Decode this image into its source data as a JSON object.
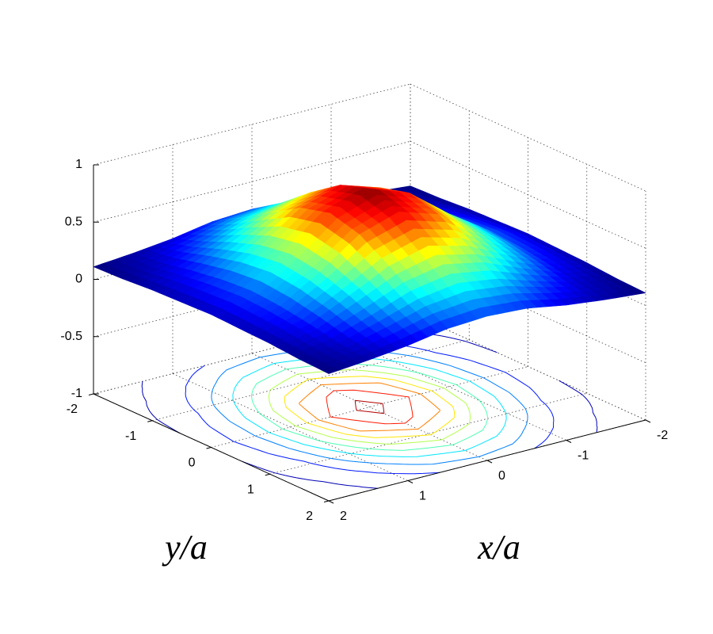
{
  "chart_data": {
    "type": "surface",
    "x": [
      -2,
      -1.5,
      -1,
      -0.5,
      0,
      0.5,
      1,
      1.5,
      2
    ],
    "y": [
      -2,
      -1.5,
      -1,
      -0.5,
      0,
      0.5,
      1,
      1.5,
      2
    ],
    "z": [
      [
        0.11,
        0.14,
        0.18,
        0.24,
        0.26,
        0.24,
        0.18,
        0.14,
        0.11
      ],
      [
        0.12,
        0.17,
        0.27,
        0.38,
        0.43,
        0.38,
        0.27,
        0.17,
        0.12
      ],
      [
        0.14,
        0.22,
        0.38,
        0.55,
        0.64,
        0.55,
        0.38,
        0.22,
        0.14
      ],
      [
        0.15,
        0.26,
        0.47,
        0.71,
        0.82,
        0.71,
        0.47,
        0.26,
        0.15
      ],
      [
        0.16,
        0.28,
        0.51,
        0.78,
        0.9,
        0.78,
        0.51,
        0.28,
        0.16
      ],
      [
        0.15,
        0.26,
        0.47,
        0.71,
        0.82,
        0.71,
        0.47,
        0.26,
        0.15
      ],
      [
        0.14,
        0.22,
        0.38,
        0.55,
        0.64,
        0.55,
        0.38,
        0.22,
        0.14
      ],
      [
        0.12,
        0.17,
        0.27,
        0.38,
        0.43,
        0.38,
        0.27,
        0.17,
        0.12
      ],
      [
        0.11,
        0.14,
        0.18,
        0.24,
        0.26,
        0.24,
        0.18,
        0.14,
        0.11
      ]
    ],
    "xlim": [
      -2,
      2
    ],
    "ylim": [
      -2,
      2
    ],
    "zlim": [
      -1,
      1
    ],
    "xticks": [
      -2,
      -1,
      0,
      1,
      2
    ],
    "yticks": [
      -2,
      -1,
      0,
      1,
      2
    ],
    "zticks": [
      -1,
      -0.5,
      0,
      0.5,
      1
    ],
    "xlabel": "x/a",
    "ylabel": "y/a",
    "colormap": "jet",
    "contour": true,
    "grid": true
  }
}
